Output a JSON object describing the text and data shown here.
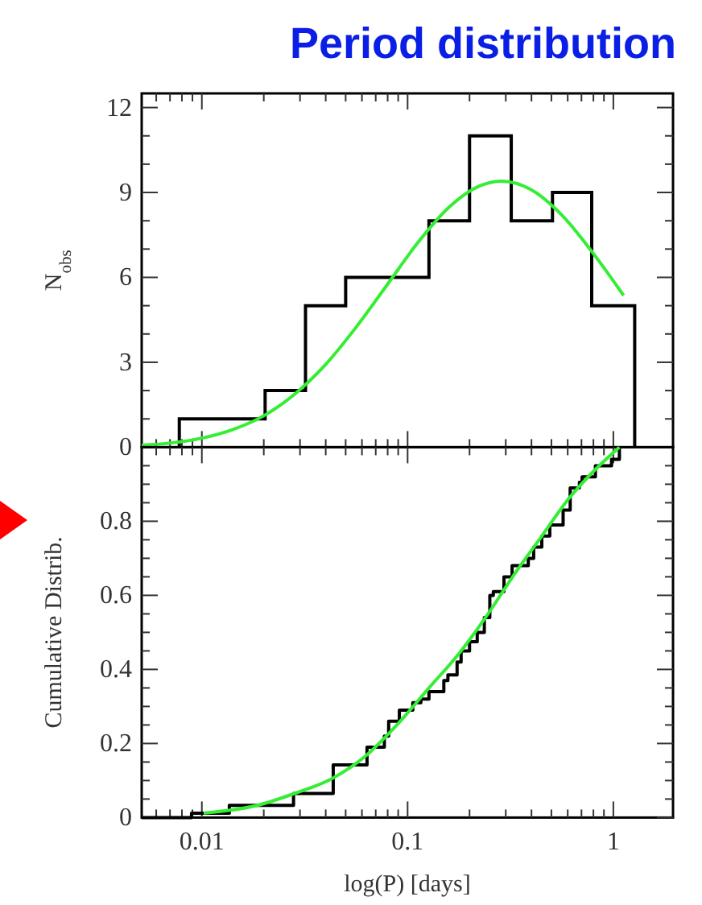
{
  "chart_data": [
    {
      "type": "histogram",
      "title": "Period distribution",
      "ylabel": "N$_{obs}$",
      "log": "x",
      "tick_labels": "y",
      "xlim": [
        0.0051,
        1.95
      ],
      "xticks": [
        {
          "value": 0.006,
          "label": null
        },
        {
          "value": 0.007,
          "label": null
        },
        {
          "value": 0.008,
          "label": null
        },
        {
          "value": 0.009,
          "label": null
        },
        0.01,
        {
          "value": 0.02,
          "label": null
        },
        {
          "value": 0.03,
          "label": null
        },
        {
          "value": 0.04,
          "label": null
        },
        {
          "value": 0.05,
          "label": null
        },
        {
          "value": 0.06,
          "label": null
        },
        {
          "value": 0.07,
          "label": null
        },
        {
          "value": 0.08,
          "label": null
        },
        {
          "value": 0.09,
          "label": null
        },
        0.1,
        {
          "value": 0.2,
          "label": null
        },
        {
          "value": 0.3,
          "label": null
        },
        {
          "value": 0.4,
          "label": null
        },
        {
          "value": 0.5,
          "label": null
        },
        {
          "value": 0.6,
          "label": null
        },
        {
          "value": 0.7,
          "label": null
        },
        {
          "value": 0.8,
          "label": null
        },
        {
          "value": 0.9,
          "label": null
        },
        1
      ],
      "ylim": [
        0,
        12.5
      ],
      "yticks": [
        0,
        {
          "value": 1,
          "label": null
        },
        {
          "value": 2,
          "label": null
        },
        3,
        {
          "value": 4,
          "label": null
        },
        {
          "value": 5,
          "label": null
        },
        6,
        {
          "value": 7,
          "label": null
        },
        {
          "value": 8,
          "label": null
        },
        9,
        {
          "value": 10,
          "label": null
        },
        {
          "value": 11,
          "label": null
        },
        12
      ],
      "bins": [
        0.00777,
        0.0203,
        0.0319,
        0.05,
        0.127,
        0.2,
        0.319,
        0.506,
        0.785,
        1.27
      ],
      "series": [
        {
          "color": "#000000",
          "values": [
            1,
            2,
            5,
            6,
            8,
            11,
            8,
            9,
            5
          ]
        },
        {
          "type": "line",
          "color": "#33ee33",
          "x": [
            0.0051,
            0.00708,
            0.01,
            0.0141,
            0.02,
            0.0282,
            0.0398,
            0.0562,
            0.0794,
            0.112,
            0.158,
            0.224,
            0.286,
            0.398,
            0.562,
            0.794,
            1.122
          ],
          "values": [
            0.07,
            0.15,
            0.32,
            0.62,
            1.11,
            1.87,
            2.91,
            4.24,
            5.73,
            7.22,
            8.46,
            9.23,
            9.4,
            9.1,
            8.2,
            6.87,
            5.36
          ]
        }
      ]
    },
    {
      "type": "step",
      "xlabel": "log(P) [days]",
      "ylabel": "Cumulative Distrib.",
      "log": "x",
      "xlim": [
        0.0051,
        1.95
      ],
      "xticks": [
        {
          "value": 0.006,
          "label": null
        },
        {
          "value": 0.007,
          "label": null
        },
        {
          "value": 0.008,
          "label": null
        },
        {
          "value": 0.009,
          "label": null
        },
        0.01,
        {
          "value": 0.02,
          "label": null
        },
        {
          "value": 0.03,
          "label": null
        },
        {
          "value": 0.04,
          "label": null
        },
        {
          "value": 0.05,
          "label": null
        },
        {
          "value": 0.06,
          "label": null
        },
        {
          "value": 0.07,
          "label": null
        },
        {
          "value": 0.08,
          "label": null
        },
        {
          "value": 0.09,
          "label": null
        },
        0.1,
        {
          "value": 0.2,
          "label": null
        },
        {
          "value": 0.3,
          "label": null
        },
        {
          "value": 0.4,
          "label": null
        },
        {
          "value": 0.5,
          "label": null
        },
        {
          "value": 0.6,
          "label": null
        },
        {
          "value": 0.7,
          "label": null
        },
        {
          "value": 0.8,
          "label": null
        },
        {
          "value": 0.9,
          "label": null
        },
        1
      ],
      "ylim": [
        0,
        1
      ],
      "yticks": [
        0,
        {
          "value": 0.05,
          "label": null
        },
        {
          "value": 0.1,
          "label": null
        },
        {
          "value": 0.15,
          "label": null
        },
        0.2,
        {
          "value": 0.25,
          "label": null
        },
        {
          "value": 0.3,
          "label": null
        },
        {
          "value": 0.35,
          "label": null
        },
        0.4,
        {
          "value": 0.45,
          "label": null
        },
        {
          "value": 0.5,
          "label": null
        },
        {
          "value": 0.55,
          "label": null
        },
        0.6,
        {
          "value": 0.65,
          "label": null
        },
        {
          "value": 0.7,
          "label": null
        },
        {
          "value": 0.75,
          "label": null
        },
        0.8,
        {
          "value": 0.85,
          "label": null
        },
        {
          "value": 0.9,
          "label": null
        },
        {
          "value": 0.95,
          "label": null
        }
      ],
      "series": [
        {
          "color": "#000000",
          "x": [
            0.0051,
            0.00891,
            0.0136,
            0.0279,
            0.0435,
            0.0635,
            0.0771,
            0.0809,
            0.0912,
            0.106,
            0.116,
            0.127,
            0.15,
            0.157,
            0.174,
            0.182,
            0.2,
            0.218,
            0.236,
            0.251,
            0.261,
            0.294,
            0.322,
            0.386,
            0.41,
            0.449,
            0.491,
            0.57,
            0.617,
            0.684,
            0.705,
            0.818,
            0.98,
            1.07
          ],
          "values": [
            0,
            0.012,
            0.033,
            0.065,
            0.142,
            0.19,
            0.22,
            0.26,
            0.29,
            0.31,
            0.32,
            0.34,
            0.37,
            0.385,
            0.42,
            0.45,
            0.475,
            0.5,
            0.54,
            0.6,
            0.61,
            0.65,
            0.68,
            0.7,
            0.73,
            0.76,
            0.79,
            0.83,
            0.89,
            0.905,
            0.92,
            0.95,
            0.967,
            1.0
          ]
        },
        {
          "type": "line",
          "color": "#33ee33",
          "x": [
            0.0102,
            0.0186,
            0.0282,
            0.0431,
            0.0618,
            0.0887,
            0.127,
            0.182,
            0.246,
            0.333,
            0.449,
            0.605,
            0.818,
            1.07
          ],
          "values": [
            0.012,
            0.033,
            0.065,
            0.106,
            0.164,
            0.25,
            0.35,
            0.45,
            0.55,
            0.66,
            0.76,
            0.86,
            0.94,
            1.0
          ]
        }
      ]
    }
  ]
}
